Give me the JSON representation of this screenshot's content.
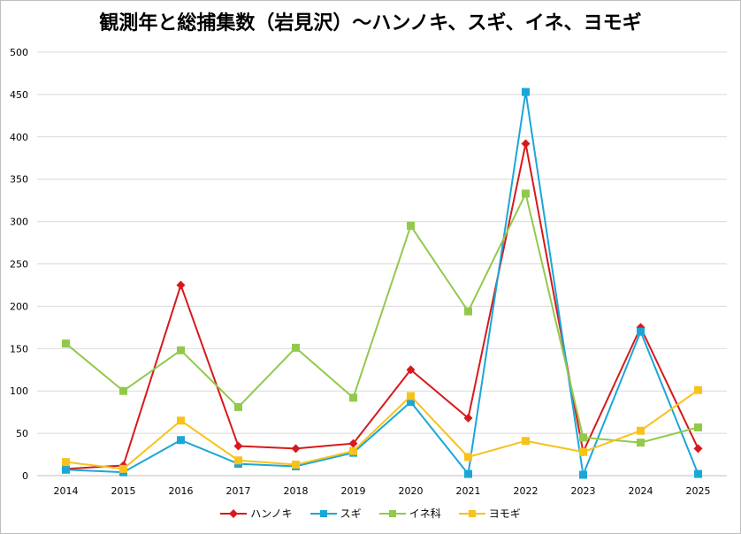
{
  "chart_data": {
    "type": "line",
    "title": "観測年と総捕集数（岩見沢）～ハンノキ、スギ、イネ、ヨモギ",
    "xlabel": "",
    "ylabel": "",
    "x": [
      "2014",
      "2015",
      "2016",
      "2017",
      "2018",
      "2019",
      "2020",
      "2021",
      "2022",
      "2023",
      "2024",
      "2025"
    ],
    "ylim": [
      0,
      500
    ],
    "yticks": [
      "0",
      "50",
      "100",
      "150",
      "200",
      "250",
      "300",
      "350",
      "400",
      "450",
      "500"
    ],
    "grid": true,
    "legend_position": "bottom",
    "series": [
      {
        "name": "ハンノキ",
        "color": "#d7191c",
        "marker": "diamond",
        "values": [
          8,
          12,
          225,
          35,
          32,
          38,
          125,
          68,
          392,
          28,
          175,
          32
        ]
      },
      {
        "name": "スギ",
        "color": "#1aa7d8",
        "marker": "square",
        "values": [
          7,
          4,
          42,
          14,
          11,
          27,
          87,
          2,
          453,
          1,
          170,
          2
        ]
      },
      {
        "name": "イネ科",
        "color": "#92c94b",
        "marker": "square",
        "values": [
          156,
          100,
          148,
          81,
          151,
          92,
          295,
          194,
          333,
          45,
          39,
          57
        ]
      },
      {
        "name": "ヨモギ",
        "color": "#f7c21a",
        "marker": "square",
        "values": [
          16,
          8,
          65,
          18,
          13,
          29,
          94,
          22,
          41,
          28,
          53,
          101
        ]
      }
    ]
  }
}
